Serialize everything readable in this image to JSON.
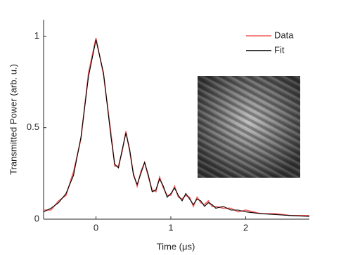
{
  "chart_data": {
    "type": "line",
    "x_label": "Time (μs)",
    "y_label": "Transmitted Power (arb. u.)",
    "x": [
      -0.7,
      -0.6,
      -0.5,
      -0.4,
      -0.3,
      -0.2,
      -0.1,
      0,
      0.1,
      0.2,
      0.25,
      0.3,
      0.35,
      0.4,
      0.45,
      0.5,
      0.55,
      0.6,
      0.65,
      0.7,
      0.75,
      0.8,
      0.85,
      0.9,
      0.95,
      1.0,
      1.05,
      1.1,
      1.15,
      1.2,
      1.25,
      1.3,
      1.35,
      1.4,
      1.45,
      1.5,
      1.55,
      1.6,
      1.7,
      1.8,
      1.9,
      2.0,
      2.2,
      2.4,
      2.6,
      2.85
    ],
    "series": [
      {
        "name": "Data",
        "color": "#f05a5a",
        "values": [
          0.05,
          0.05,
          0.1,
          0.13,
          0.26,
          0.44,
          0.8,
          0.99,
          0.79,
          0.47,
          0.29,
          0.29,
          0.37,
          0.48,
          0.37,
          0.25,
          0.18,
          0.26,
          0.31,
          0.23,
          0.16,
          0.15,
          0.23,
          0.17,
          0.13,
          0.13,
          0.18,
          0.12,
          0.11,
          0.13,
          0.12,
          0.07,
          0.12,
          0.09,
          0.08,
          0.1,
          0.07,
          0.07,
          0.06,
          0.06,
          0.04,
          0.05,
          0.03,
          0.03,
          0.02,
          0.02
        ]
      },
      {
        "name": "Fit",
        "color": "#000000",
        "values": [
          0.04,
          0.06,
          0.09,
          0.14,
          0.24,
          0.45,
          0.78,
          0.98,
          0.8,
          0.45,
          0.3,
          0.28,
          0.38,
          0.47,
          0.38,
          0.24,
          0.19,
          0.25,
          0.31,
          0.24,
          0.15,
          0.16,
          0.22,
          0.18,
          0.12,
          0.14,
          0.17,
          0.13,
          0.1,
          0.14,
          0.11,
          0.08,
          0.11,
          0.1,
          0.07,
          0.09,
          0.08,
          0.06,
          0.07,
          0.05,
          0.05,
          0.04,
          0.03,
          0.025,
          0.02,
          0.015
        ]
      }
    ],
    "xlim": [
      -0.7,
      2.85
    ],
    "xticks": [
      0,
      1,
      2
    ],
    "ylim": [
      0,
      1.09
    ],
    "yticks": [
      0,
      0.5,
      1
    ],
    "legend": "top-right"
  }
}
